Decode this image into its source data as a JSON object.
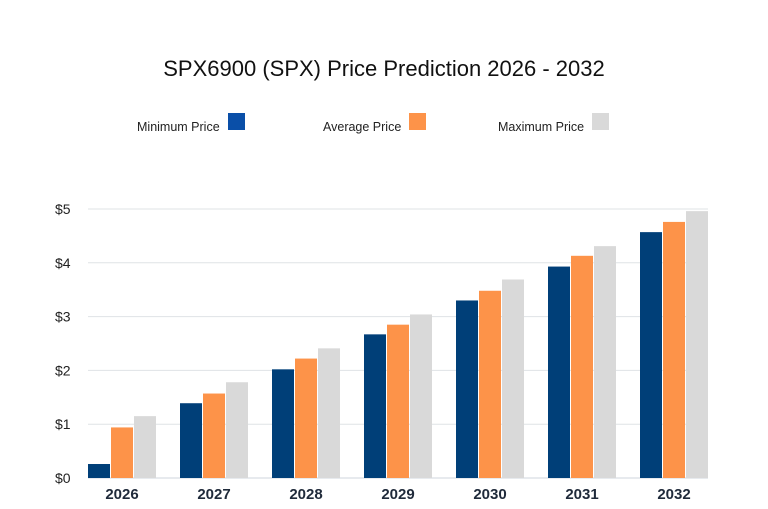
{
  "chart_data": {
    "type": "bar",
    "title": "SPX6900 (SPX) Price Prediction 2026 - 2032",
    "categories": [
      "2026",
      "2027",
      "2028",
      "2029",
      "2030",
      "2031",
      "2032"
    ],
    "series": [
      {
        "name": "Minimum Price",
        "color": "#003f78",
        "values": [
          0.26,
          1.39,
          2.02,
          2.67,
          3.3,
          3.93,
          4.57
        ]
      },
      {
        "name": "Average Price",
        "color": "#fd9349",
        "values": [
          0.94,
          1.57,
          2.22,
          2.85,
          3.48,
          4.13,
          4.76
        ]
      },
      {
        "name": "Maximum Price",
        "color": "#d9d9d9",
        "values": [
          1.15,
          1.78,
          2.41,
          3.04,
          3.69,
          4.31,
          4.96
        ]
      }
    ],
    "ylim": [
      0,
      5
    ],
    "yticks": [
      "$0",
      "$1",
      "$2",
      "$3",
      "$4",
      "$5"
    ],
    "grid": true,
    "legend_placement": "top",
    "xlabel": "",
    "ylabel": ""
  }
}
